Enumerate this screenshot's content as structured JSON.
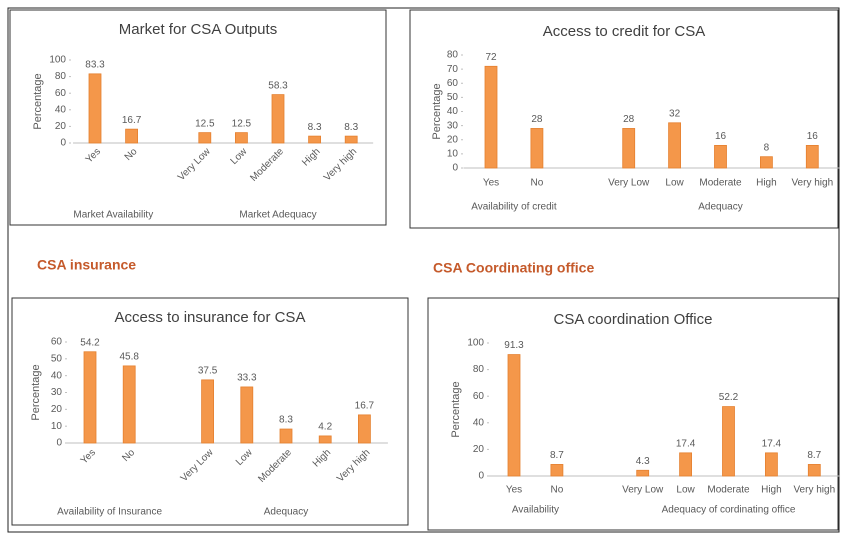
{
  "headings": [
    "CSA insurance",
    "CSA Coordinating office"
  ],
  "chart_data": [
    {
      "type": "bar",
      "title": "Market for CSA Outputs",
      "y_label": "Percentage",
      "color": "#f4974a",
      "ylim": [
        0,
        100
      ],
      "yticks": [
        0,
        20,
        40,
        60,
        80,
        100
      ],
      "groups": [
        {
          "label": "Market Availability",
          "categories": [
            "Yes",
            "No"
          ],
          "values": [
            83.3,
            16.7
          ]
        },
        {
          "label": "Market Adequacy",
          "categories": [
            "Very Low",
            "Low",
            "Moderate",
            "High",
            "Very high"
          ],
          "values": [
            12.5,
            12.5,
            58.3,
            8.3,
            8.3
          ]
        }
      ]
    },
    {
      "type": "bar",
      "title": "Access to credit for CSA",
      "y_label": "Percentage",
      "color": "#f4974a",
      "ylim": [
        0,
        80
      ],
      "yticks": [
        0,
        10,
        20,
        30,
        40,
        50,
        60,
        70,
        80
      ],
      "groups": [
        {
          "label": "Availability  of credit",
          "categories": [
            "Yes",
            "No"
          ],
          "values": [
            72,
            28
          ]
        },
        {
          "label": "Adequacy",
          "categories": [
            "Very Low",
            "Low",
            "Moderate",
            "High",
            "Very high"
          ],
          "values": [
            28,
            32,
            16,
            8,
            16
          ]
        }
      ]
    },
    {
      "type": "bar",
      "title": "Access to insurance for CSA",
      "y_label": "Percentage",
      "color": "#f4974a",
      "ylim": [
        0,
        60
      ],
      "yticks": [
        0,
        10,
        20,
        30,
        40,
        50,
        60
      ],
      "groups": [
        {
          "label": "Availability  of Insurance",
          "categories": [
            "Yes",
            "No"
          ],
          "values": [
            54.2,
            45.8
          ]
        },
        {
          "label": "Adequacy",
          "categories": [
            "Very Low",
            "Low",
            "Moderate",
            "High",
            "Very high"
          ],
          "values": [
            37.5,
            33.3,
            8.3,
            4.2,
            16.7
          ]
        }
      ]
    },
    {
      "type": "bar",
      "title": "CSA coordination Office",
      "y_label": "Percentage",
      "color": "#f4974a",
      "ylim": [
        0,
        100
      ],
      "yticks": [
        0,
        20,
        40,
        60,
        80,
        100
      ],
      "groups": [
        {
          "label": "Availability",
          "categories": [
            "Yes",
            "No"
          ],
          "values": [
            91.3,
            8.7
          ]
        },
        {
          "label": "Adequacy of cordinating office",
          "categories": [
            "Very Low",
            "Low",
            "Moderate",
            "High",
            "Very high"
          ],
          "values": [
            4.3,
            17.4,
            52.2,
            17.4,
            8.7
          ]
        }
      ]
    }
  ]
}
